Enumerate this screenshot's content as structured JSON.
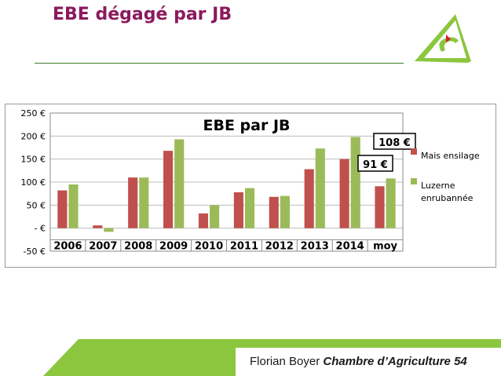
{
  "slide": {
    "title": "EBE dégagé par JB",
    "footer_author": "Florian Boyer",
    "footer_org": "Chambre d’Agriculture 54"
  },
  "colors": {
    "title": "#8b1a5c",
    "series_red": "#c0504d",
    "series_green": "#9bbb59",
    "footer_green": "#8cc63f"
  },
  "chart_data": {
    "type": "bar",
    "title": "EBE par JB",
    "xlabel": "",
    "ylabel": "",
    "categories": [
      "2006",
      "2007",
      "2008",
      "2009",
      "2010",
      "2011",
      "2012",
      "2013",
      "2014",
      "moy"
    ],
    "series": [
      {
        "name": "Mais ensilage",
        "color": "#c0504d",
        "values": [
          82,
          6,
          110,
          168,
          32,
          78,
          68,
          128,
          150,
          91
        ]
      },
      {
        "name": "Luzerne enrubannée",
        "color": "#9bbb59",
        "values": [
          95,
          -8,
          110,
          193,
          50,
          87,
          70,
          173,
          198,
          108
        ]
      }
    ],
    "ylim": [
      -50,
      250
    ],
    "yticks": [
      -50,
      0,
      50,
      100,
      150,
      200,
      250
    ],
    "ytick_labels": [
      "-50 €",
      "- €",
      "50 €",
      "100 €",
      "150 €",
      "200 €",
      "250 €"
    ],
    "grid": true,
    "legend": "right",
    "legend_labels": [
      "Mais ensilage",
      "Luzerne",
      "enrubannée"
    ],
    "annotations": [
      {
        "text": "108 €",
        "category": "moy",
        "series": 1
      },
      {
        "text": "91 €",
        "category": "moy",
        "series": 0
      }
    ]
  }
}
